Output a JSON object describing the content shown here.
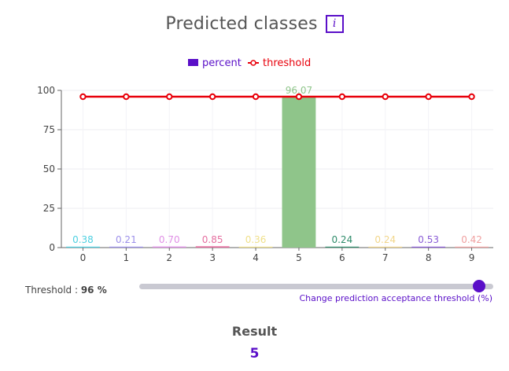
{
  "header": {
    "title": "Predicted classes",
    "info_icon": "info-icon",
    "info_glyph": "i"
  },
  "threshold": {
    "label": "Threshold : ",
    "value_text": "96 %",
    "value": 96,
    "min": 0,
    "max": 100,
    "caption": "Change prediction acceptance threshold (%)"
  },
  "result": {
    "title": "Result",
    "value": "5"
  },
  "colors": {
    "accent": "#5a0fc8",
    "threshold_line": "#e8000b",
    "percent_legend": "#5a0fc8"
  },
  "chart_data": {
    "type": "bar",
    "categories": [
      "0",
      "1",
      "2",
      "3",
      "4",
      "5",
      "6",
      "7",
      "8",
      "9"
    ],
    "series": [
      {
        "name": "percent",
        "values": [
          0.38,
          0.21,
          0.7,
          0.85,
          0.36,
          96.07,
          0.24,
          0.24,
          0.53,
          0.42
        ],
        "value_labels": [
          "0.38",
          "0.21",
          "0.70",
          "0.85",
          "0.36",
          "96.07",
          "0.24",
          "0.24",
          "0.53",
          "0.42"
        ],
        "colors": [
          "#4dd0e1",
          "#9c8fea",
          "#e090e6",
          "#e56fa0",
          "#f0e08a",
          "#8fc58a",
          "#2e8b6a",
          "#f2d68a",
          "#8a5cd6",
          "#f0a0a0"
        ]
      },
      {
        "name": "threshold",
        "type": "line",
        "values": [
          96,
          96,
          96,
          96,
          96,
          96,
          96,
          96,
          96,
          96
        ],
        "color": "#e8000b"
      }
    ],
    "yticks": [
      "0",
      "25",
      "50",
      "75",
      "100"
    ],
    "ylim": [
      0,
      100
    ],
    "grid": true,
    "legend_position": "top-center"
  }
}
